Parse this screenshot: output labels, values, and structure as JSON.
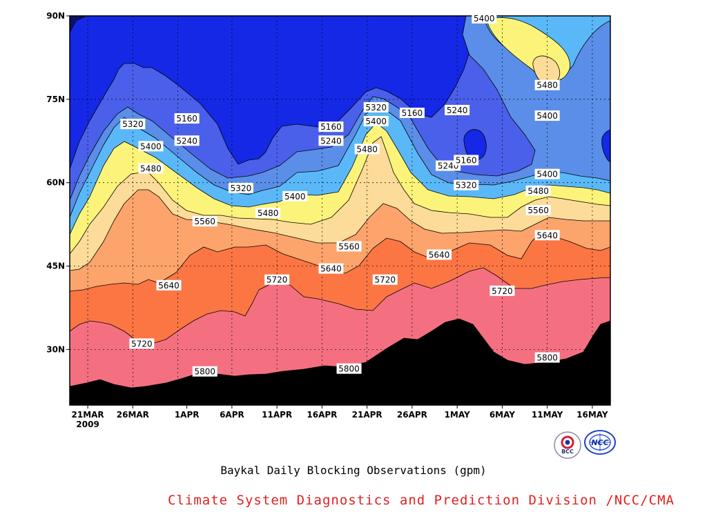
{
  "chart_data": {
    "type": "contour",
    "title": "Baykal Daily Blocking Observations (gpm)",
    "credit": "Climate System Diagnostics and Prediction Division /NCC/CMA",
    "x_ticks": [
      "21MAR",
      "26MAR",
      "1APR",
      "6APR",
      "11APR",
      "16APR",
      "21APR",
      "26APR",
      "1MAY",
      "6MAY",
      "11MAY",
      "16MAY"
    ],
    "x_year_label": "2009",
    "x_range": [
      "2009-03-19",
      "2009-05-18"
    ],
    "y_ticks": [
      "30N",
      "45N",
      "60N",
      "75N",
      "90N"
    ],
    "y_range_deg": [
      20,
      90
    ],
    "grid": "dotted",
    "levels": [
      5160,
      5240,
      5320,
      5400,
      5480,
      5560,
      5640,
      5720,
      5800
    ],
    "fill_colors": [
      "#0c1468",
      "#1428e6",
      "#4a60ea",
      "#5a8ee8",
      "#5ab8f8",
      "#fcf47a",
      "#fcdc98",
      "#fca46c",
      "#fc7644",
      "#f47080"
    ],
    "contour_labels": [
      {
        "value": "5160",
        "date": "2009-04-01",
        "lat": 71.5
      },
      {
        "value": "5240",
        "date": "2009-04-01",
        "lat": 67.5
      },
      {
        "value": "5320",
        "date": "2009-03-26",
        "lat": 70.5
      },
      {
        "value": "5400",
        "date": "2009-03-28",
        "lat": 66.5
      },
      {
        "value": "5480",
        "date": "2009-03-28",
        "lat": 62.5
      },
      {
        "value": "5320",
        "date": "2009-04-07",
        "lat": 59.0
      },
      {
        "value": "5560",
        "date": "2009-04-03",
        "lat": 53.0
      },
      {
        "value": "5640",
        "date": "2009-03-30",
        "lat": 41.5
      },
      {
        "value": "5720",
        "date": "2009-03-27",
        "lat": 31.0
      },
      {
        "value": "5800",
        "date": "2009-04-03",
        "lat": 26.0
      },
      {
        "value": "5480",
        "date": "2009-04-10",
        "lat": 54.5
      },
      {
        "value": "5400",
        "date": "2009-04-13",
        "lat": 57.5
      },
      {
        "value": "5720",
        "date": "2009-04-11",
        "lat": 42.5
      },
      {
        "value": "5160",
        "date": "2009-04-17",
        "lat": 70.0
      },
      {
        "value": "5240",
        "date": "2009-04-17",
        "lat": 67.5
      },
      {
        "value": "5560",
        "date": "2009-04-19",
        "lat": 48.5
      },
      {
        "value": "5640",
        "date": "2009-04-17",
        "lat": 44.5
      },
      {
        "value": "5800",
        "date": "2009-04-19",
        "lat": 26.5
      },
      {
        "value": "5320",
        "date": "2009-04-22",
        "lat": 73.5
      },
      {
        "value": "5400",
        "date": "2009-04-22",
        "lat": 71.0
      },
      {
        "value": "5480",
        "date": "2009-04-21",
        "lat": 66.0
      },
      {
        "value": "5720",
        "date": "2009-04-23",
        "lat": 42.5
      },
      {
        "value": "5160",
        "date": "2009-04-26",
        "lat": 72.5
      },
      {
        "value": "5240",
        "date": "2009-05-01",
        "lat": 73.0
      },
      {
        "value": "5640",
        "date": "2009-04-29",
        "lat": 47.0
      },
      {
        "value": "5240",
        "date": "2009-04-30",
        "lat": 63.0
      },
      {
        "value": "5160",
        "date": "2009-05-02",
        "lat": 64.0
      },
      {
        "value": "5320",
        "date": "2009-05-02",
        "lat": 59.5
      },
      {
        "value": "5400",
        "date": "2009-05-04",
        "lat": 89.5
      },
      {
        "value": "5480",
        "date": "2009-05-11",
        "lat": 77.5
      },
      {
        "value": "5400",
        "date": "2009-05-11",
        "lat": 72.0
      },
      {
        "value": "5400",
        "date": "2009-05-11",
        "lat": 61.5
      },
      {
        "value": "5480",
        "date": "2009-05-10",
        "lat": 58.5
      },
      {
        "value": "5560",
        "date": "2009-05-10",
        "lat": 55.0
      },
      {
        "value": "5640",
        "date": "2009-05-11",
        "lat": 50.5
      },
      {
        "value": "5720",
        "date": "2009-05-06",
        "lat": 40.5
      },
      {
        "value": "5800",
        "date": "2009-05-11",
        "lat": 28.5
      }
    ]
  },
  "logos": {
    "bcc": {
      "name": "bcc-logo-icon",
      "text": "BCC"
    },
    "ncc": {
      "name": "ncc-logo-icon",
      "text": "NCC"
    }
  }
}
